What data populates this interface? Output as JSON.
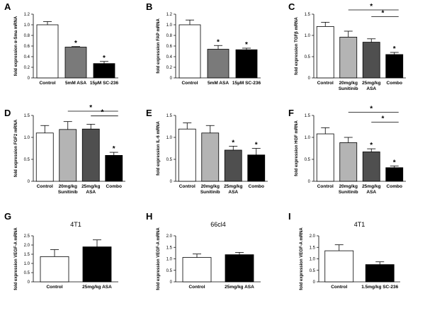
{
  "colors": {
    "white": "#ffffff",
    "light_gray": "#b4b4b4",
    "mid_gray": "#7a7a7a",
    "dark_gray": "#4f4f4f",
    "black": "#000000"
  },
  "chart_data": [
    {
      "panel": "A",
      "type": "bar",
      "title": "",
      "ylabel": "fold expression α-Sma mRNA",
      "ylim": [
        0,
        1.2
      ],
      "yticks": [
        "0",
        "0.2",
        "0.4",
        "0.6",
        "0.8",
        "1.0",
        "1.2"
      ],
      "categories": [
        "Control",
        "5mM ASA",
        "15µM SC-236"
      ],
      "values": [
        1.0,
        0.58,
        0.27
      ],
      "errors": [
        0.06,
        0.01,
        0.04
      ],
      "fills": [
        "white",
        "mid_gray",
        "black"
      ],
      "significance": [
        "",
        "*",
        "*"
      ],
      "brackets": []
    },
    {
      "panel": "B",
      "type": "bar",
      "title": "",
      "ylabel": "fold expression FAP mRNA",
      "ylim": [
        0,
        1.2
      ],
      "yticks": [
        "0",
        "0.2",
        "0.4",
        "0.6",
        "0.8",
        "1.0",
        "1.2"
      ],
      "categories": [
        "Control",
        "5mM ASA",
        "15µM SC-236"
      ],
      "values": [
        1.0,
        0.54,
        0.53
      ],
      "errors": [
        0.09,
        0.07,
        0.03
      ],
      "fills": [
        "white",
        "mid_gray",
        "black"
      ],
      "significance": [
        "",
        "*",
        "*"
      ],
      "brackets": []
    },
    {
      "panel": "C",
      "type": "bar",
      "title": "",
      "ylabel": "fold expression TGFβ mRNA",
      "ylim": [
        0,
        1.5
      ],
      "yticks": [
        "0",
        "0.5",
        "1.0",
        "1.5"
      ],
      "categories": [
        "Control",
        "20mg/kg Sunitinib",
        "25mg/kg ASA",
        "Combo"
      ],
      "values": [
        1.21,
        0.96,
        0.84,
        0.55
      ],
      "errors": [
        0.1,
        0.14,
        0.08,
        0.05
      ],
      "fills": [
        "white",
        "light_gray",
        "dark_gray",
        "black"
      ],
      "significance": [
        "",
        "",
        "",
        "*"
      ],
      "brackets": [
        {
          "from": 1,
          "to": 3,
          "label": "*"
        },
        {
          "from": 2,
          "to": 3,
          "label": "*"
        }
      ]
    },
    {
      "panel": "D",
      "type": "bar",
      "title": "",
      "ylabel": "fold expression FGF2 mRNA",
      "ylim": [
        0,
        1.5
      ],
      "yticks": [
        "0",
        "0.5",
        "1.0",
        "1.5"
      ],
      "categories": [
        "Control",
        "20mg/kg Sunitinib",
        "25mg/kg ASA",
        "Combo"
      ],
      "values": [
        1.1,
        1.18,
        1.19,
        0.59
      ],
      "errors": [
        0.17,
        0.18,
        0.11,
        0.07
      ],
      "fills": [
        "white",
        "light_gray",
        "dark_gray",
        "black"
      ],
      "significance": [
        "",
        "",
        "",
        "*"
      ],
      "brackets": [
        {
          "from": 1,
          "to": 3,
          "label": "*"
        },
        {
          "from": 2,
          "to": 3,
          "label": "*"
        }
      ]
    },
    {
      "panel": "E",
      "type": "bar",
      "title": "",
      "ylabel": "fold expression IL-6 mRNA",
      "ylim": [
        0,
        1.5
      ],
      "yticks": [
        "0",
        "0.5",
        "1.0",
        "1.5"
      ],
      "categories": [
        "Control",
        "20mg/kg Sunitinib",
        "25mg/kg ASA",
        "Combo"
      ],
      "values": [
        1.19,
        1.1,
        0.71,
        0.6
      ],
      "errors": [
        0.14,
        0.17,
        0.09,
        0.15
      ],
      "fills": [
        "white",
        "light_gray",
        "dark_gray",
        "black"
      ],
      "significance": [
        "",
        "",
        "*",
        "*"
      ],
      "brackets": []
    },
    {
      "panel": "F",
      "type": "bar",
      "title": "",
      "ylabel": "fold expression HGF mRNA",
      "ylim": [
        0,
        1.5
      ],
      "yticks": [
        "0",
        "0.5",
        "1.0",
        "1.5"
      ],
      "categories": [
        "Control",
        "20mg/kg Sunitinib",
        "25mg/kg ASA",
        "Combo"
      ],
      "values": [
        1.08,
        0.88,
        0.67,
        0.31
      ],
      "errors": [
        0.14,
        0.12,
        0.07,
        0.04
      ],
      "fills": [
        "white",
        "light_gray",
        "dark_gray",
        "black"
      ],
      "significance": [
        "",
        "",
        "*",
        "*"
      ],
      "brackets": [
        {
          "from": 1,
          "to": 3,
          "label": "*"
        },
        {
          "from": 2,
          "to": 3,
          "label": "*"
        }
      ]
    },
    {
      "panel": "G",
      "type": "bar",
      "title": "4T1",
      "ylabel": "fold expression VEGF-A mRNA",
      "ylim": [
        0,
        2.5
      ],
      "yticks": [
        "0",
        "0.5",
        "1.0",
        "1.5",
        "2.0",
        "2.5"
      ],
      "categories": [
        "Control",
        "25mg/kg ASA"
      ],
      "values": [
        1.37,
        1.9
      ],
      "errors": [
        0.38,
        0.38
      ],
      "fills": [
        "white",
        "black"
      ],
      "significance": [
        "",
        ""
      ],
      "brackets": []
    },
    {
      "panel": "H",
      "type": "bar",
      "title": "66cl4",
      "ylabel": "fold expression VEGF-A mRNA",
      "ylim": [
        0,
        2.0
      ],
      "yticks": [
        "0",
        "0.5",
        "1.0",
        "1.5",
        "2.0"
      ],
      "categories": [
        "Control",
        "25mg/kg ASA"
      ],
      "values": [
        1.06,
        1.18
      ],
      "errors": [
        0.15,
        0.1
      ],
      "fills": [
        "white",
        "black"
      ],
      "significance": [
        "",
        ""
      ],
      "brackets": []
    },
    {
      "panel": "I",
      "type": "bar",
      "title": "4T1",
      "ylabel": "fold expression VEGF-A mRNA",
      "ylim": [
        0,
        2.0
      ],
      "yticks": [
        "0",
        "0.5",
        "1.0",
        "1.5",
        "2.0"
      ],
      "categories": [
        "Control",
        "1.5mg/kg SC-236"
      ],
      "values": [
        1.35,
        0.75
      ],
      "errors": [
        0.26,
        0.12
      ],
      "fills": [
        "white",
        "black"
      ],
      "significance": [
        "",
        ""
      ],
      "brackets": []
    }
  ]
}
